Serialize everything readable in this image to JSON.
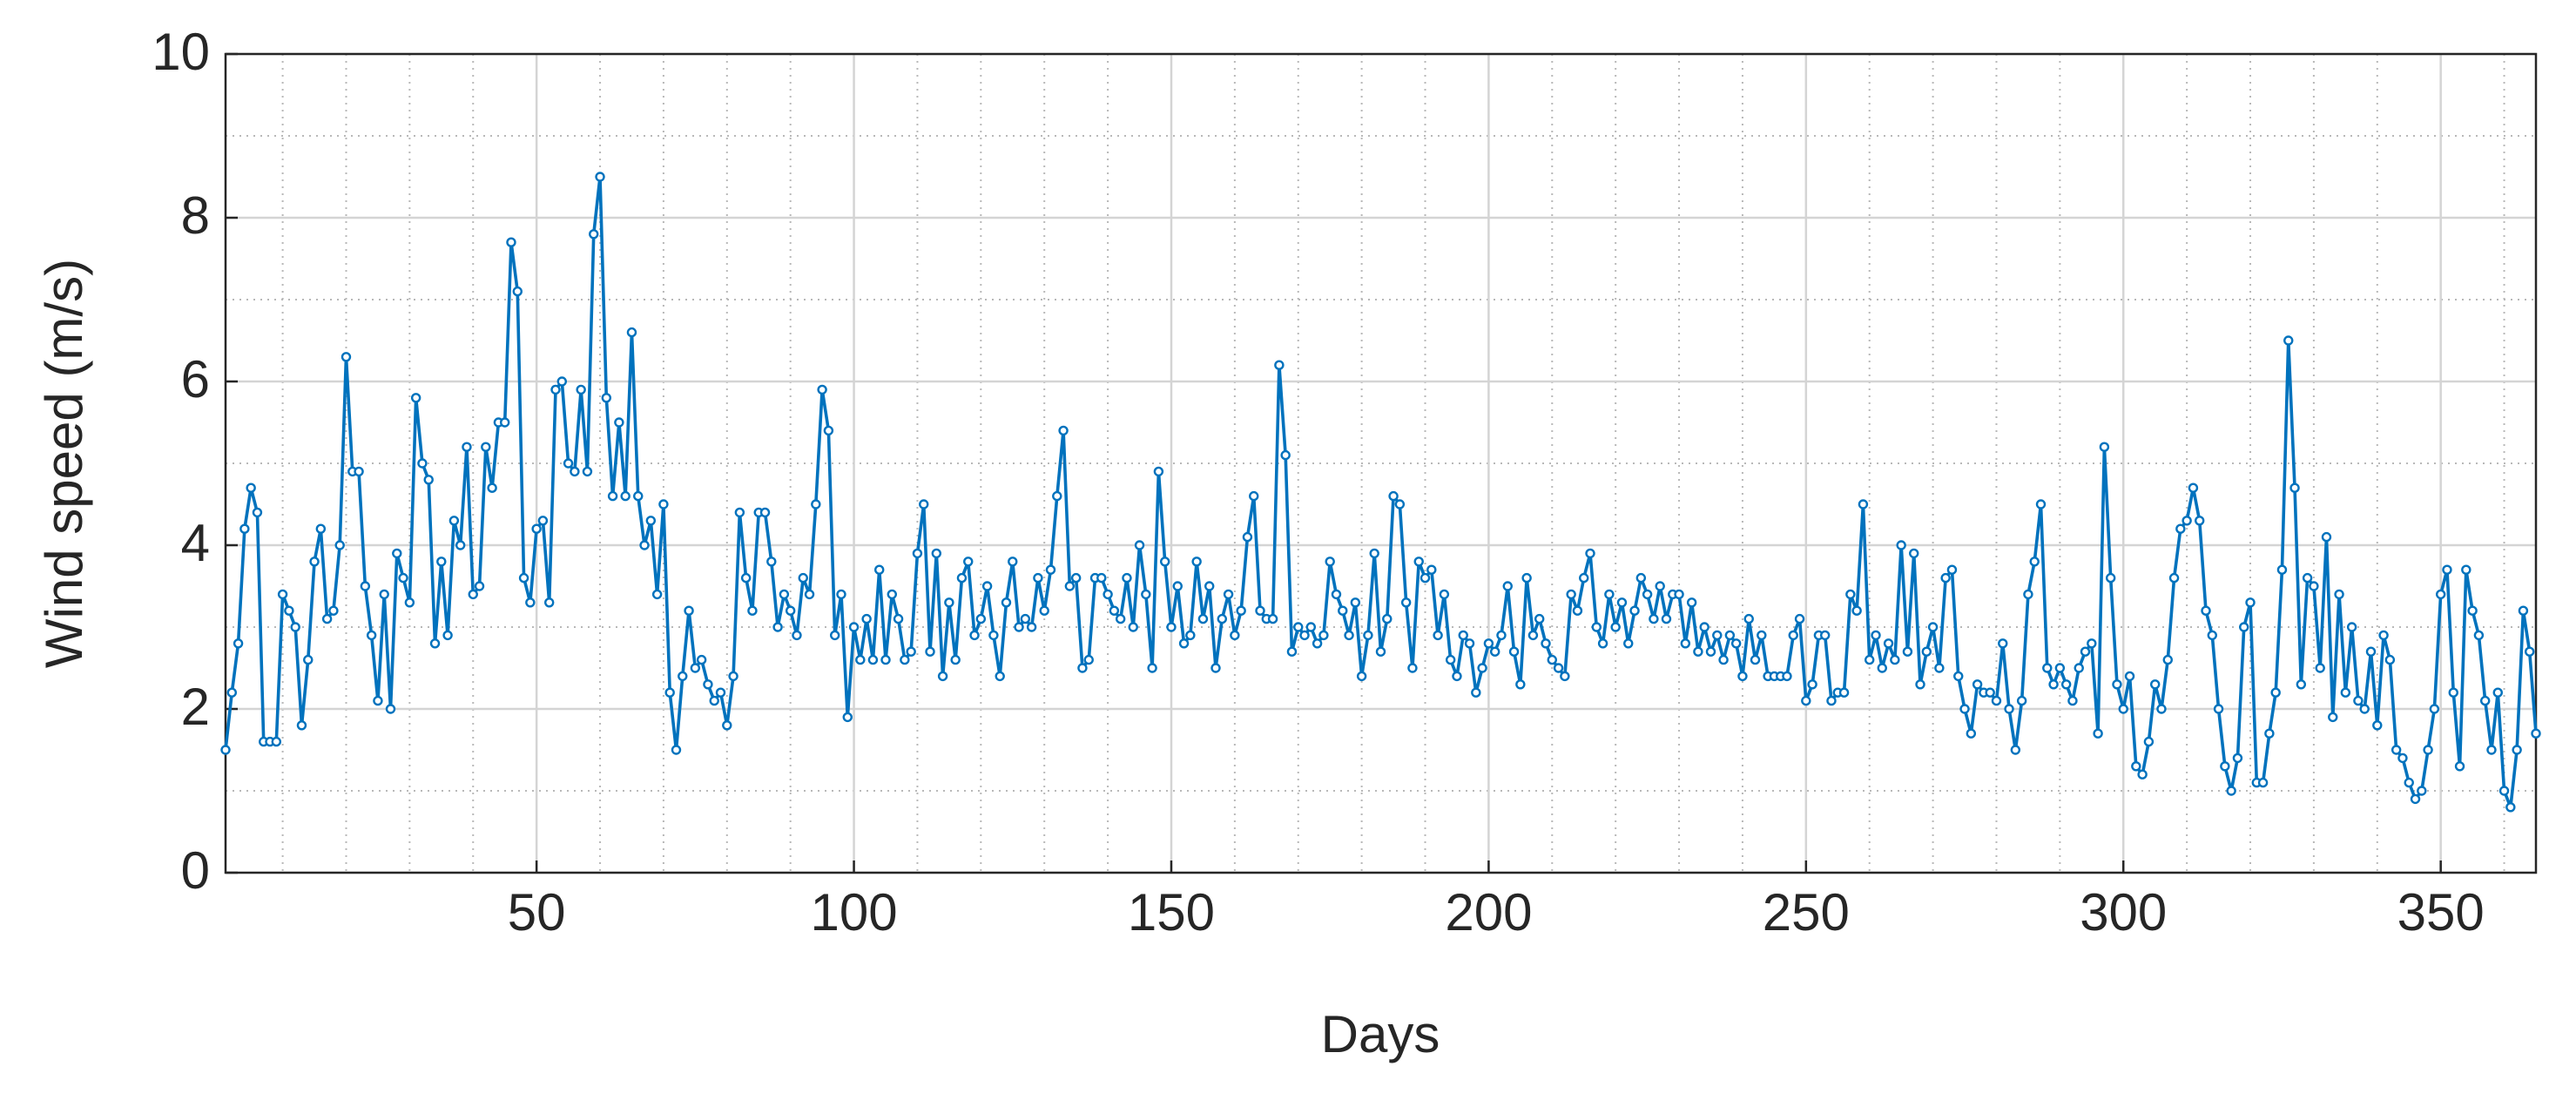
{
  "chart_data": {
    "type": "line",
    "xlabel": "Days",
    "ylabel": "Wind speed (m/s)",
    "x": [
      1,
      2,
      3,
      4,
      5,
      6,
      7,
      8,
      9,
      10,
      11,
      12,
      13,
      14,
      15,
      16,
      17,
      18,
      19,
      20,
      21,
      22,
      23,
      24,
      25,
      26,
      27,
      28,
      29,
      30,
      31,
      32,
      33,
      34,
      35,
      36,
      37,
      38,
      39,
      40,
      41,
      42,
      43,
      44,
      45,
      46,
      47,
      48,
      49,
      50,
      51,
      52,
      53,
      54,
      55,
      56,
      57,
      58,
      59,
      60,
      61,
      62,
      63,
      64,
      65,
      66,
      67,
      68,
      69,
      70,
      71,
      72,
      73,
      74,
      75,
      76,
      77,
      78,
      79,
      80,
      81,
      82,
      83,
      84,
      85,
      86,
      87,
      88,
      89,
      90,
      91,
      92,
      93,
      94,
      95,
      96,
      97,
      98,
      99,
      100,
      101,
      102,
      103,
      104,
      105,
      106,
      107,
      108,
      109,
      110,
      111,
      112,
      113,
      114,
      115,
      116,
      117,
      118,
      119,
      120,
      121,
      122,
      123,
      124,
      125,
      126,
      127,
      128,
      129,
      130,
      131,
      132,
      133,
      134,
      135,
      136,
      137,
      138,
      139,
      140,
      141,
      142,
      143,
      144,
      145,
      146,
      147,
      148,
      149,
      150,
      151,
      152,
      153,
      154,
      155,
      156,
      157,
      158,
      159,
      160,
      161,
      162,
      163,
      164,
      165,
      166,
      167,
      168,
      169,
      170,
      171,
      172,
      173,
      174,
      175,
      176,
      177,
      178,
      179,
      180,
      181,
      182,
      183,
      184,
      185,
      186,
      187,
      188,
      189,
      190,
      191,
      192,
      193,
      194,
      195,
      196,
      197,
      198,
      199,
      200,
      201,
      202,
      203,
      204,
      205,
      206,
      207,
      208,
      209,
      210,
      211,
      212,
      213,
      214,
      215,
      216,
      217,
      218,
      219,
      220,
      221,
      222,
      223,
      224,
      225,
      226,
      227,
      228,
      229,
      230,
      231,
      232,
      233,
      234,
      235,
      236,
      237,
      238,
      239,
      240,
      241,
      242,
      243,
      244,
      245,
      246,
      247,
      248,
      249,
      250,
      251,
      252,
      253,
      254,
      255,
      256,
      257,
      258,
      259,
      260,
      261,
      262,
      263,
      264,
      265,
      266,
      267,
      268,
      269,
      270,
      271,
      272,
      273,
      274,
      275,
      276,
      277,
      278,
      279,
      280,
      281,
      282,
      283,
      284,
      285,
      286,
      287,
      288,
      289,
      290,
      291,
      292,
      293,
      294,
      295,
      296,
      297,
      298,
      299,
      300,
      301,
      302,
      303,
      304,
      305,
      306,
      307,
      308,
      309,
      310,
      311,
      312,
      313,
      314,
      315,
      316,
      317,
      318,
      319,
      320,
      321,
      322,
      323,
      324,
      325,
      326,
      327,
      328,
      329,
      330,
      331,
      332,
      333,
      334,
      335,
      336,
      337,
      338,
      339,
      340,
      341,
      342,
      343,
      344,
      345,
      346,
      347,
      348,
      349,
      350,
      351,
      352,
      353,
      354,
      355,
      356,
      357,
      358,
      359,
      360,
      361,
      362,
      363,
      364,
      365
    ],
    "series": [
      {
        "color": "#0072bd",
        "values": [
          1.5,
          2.2,
          2.8,
          4.2,
          4.7,
          4.4,
          1.6,
          1.6,
          1.6,
          3.4,
          3.2,
          3.0,
          1.8,
          2.6,
          3.8,
          4.2,
          3.1,
          3.2,
          4.0,
          6.3,
          4.9,
          4.9,
          3.5,
          2.9,
          2.1,
          3.4,
          2.0,
          3.9,
          3.6,
          3.3,
          5.8,
          5.0,
          4.8,
          2.8,
          3.8,
          2.9,
          4.3,
          4.0,
          5.2,
          3.4,
          3.5,
          5.2,
          4.7,
          5.5,
          5.5,
          7.7,
          7.1,
          3.6,
          3.3,
          4.2,
          4.3,
          3.3,
          5.9,
          6.0,
          5.0,
          4.9,
          5.9,
          4.9,
          7.8,
          8.5,
          5.8,
          4.6,
          5.5,
          4.6,
          6.6,
          4.6,
          4.0,
          4.3,
          3.4,
          4.5,
          2.2,
          1.5,
          2.4,
          3.2,
          2.5,
          2.6,
          2.3,
          2.1,
          2.2,
          1.8,
          2.4,
          4.4,
          3.6,
          3.2,
          4.4,
          4.4,
          3.8,
          3.0,
          3.4,
          3.2,
          2.9,
          3.6,
          3.4,
          4.5,
          5.9,
          5.4,
          2.9,
          3.4,
          1.9,
          3.0,
          2.6,
          3.1,
          2.6,
          3.7,
          2.6,
          3.4,
          3.1,
          2.6,
          2.7,
          3.9,
          4.5,
          2.7,
          3.9,
          2.4,
          3.3,
          2.6,
          3.6,
          3.8,
          2.9,
          3.1,
          3.5,
          2.9,
          2.4,
          3.3,
          3.8,
          3.0,
          3.1,
          3.0,
          3.6,
          3.2,
          3.7,
          4.6,
          5.4,
          3.5,
          3.6,
          2.5,
          2.6,
          3.6,
          3.6,
          3.4,
          3.2,
          3.1,
          3.6,
          3.0,
          4.0,
          3.4,
          2.5,
          4.9,
          3.8,
          3.0,
          3.5,
          2.8,
          2.9,
          3.8,
          3.1,
          3.5,
          2.5,
          3.1,
          3.4,
          2.9,
          3.2,
          4.1,
          4.6,
          3.2,
          3.1,
          3.1,
          6.2,
          5.1,
          2.7,
          3.0,
          2.9,
          3.0,
          2.8,
          2.9,
          3.8,
          3.4,
          3.2,
          2.9,
          3.3,
          2.4,
          2.9,
          3.9,
          2.7,
          3.1,
          4.6,
          4.5,
          3.3,
          2.5,
          3.8,
          3.6,
          3.7,
          2.9,
          3.4,
          2.6,
          2.4,
          2.9,
          2.8,
          2.2,
          2.5,
          2.8,
          2.7,
          2.9,
          3.5,
          2.7,
          2.3,
          3.6,
          2.9,
          3.1,
          2.8,
          2.6,
          2.5,
          2.4,
          3.4,
          3.2,
          3.6,
          3.9,
          3.0,
          2.8,
          3.4,
          3.0,
          3.3,
          2.8,
          3.2,
          3.6,
          3.4,
          3.1,
          3.5,
          3.1,
          3.4,
          3.4,
          2.8,
          3.3,
          2.7,
          3.0,
          2.7,
          2.9,
          2.6,
          2.9,
          2.8,
          2.4,
          3.1,
          2.6,
          2.9,
          2.4,
          2.4,
          2.4,
          2.4,
          2.9,
          3.1,
          2.1,
          2.3,
          2.9,
          2.9,
          2.1,
          2.2,
          2.2,
          3.4,
          3.2,
          4.5,
          2.6,
          2.9,
          2.5,
          2.8,
          2.6,
          4.0,
          2.7,
          3.9,
          2.3,
          2.7,
          3.0,
          2.5,
          3.6,
          3.7,
          2.4,
          2.0,
          1.7,
          2.3,
          2.2,
          2.2,
          2.1,
          2.8,
          2.0,
          1.5,
          2.1,
          3.4,
          3.8,
          4.5,
          2.5,
          2.3,
          2.5,
          2.3,
          2.1,
          2.5,
          2.7,
          2.8,
          1.7,
          5.2,
          3.6,
          2.3,
          2.0,
          2.4,
          1.3,
          1.2,
          1.6,
          2.3,
          2.0,
          2.6,
          3.6,
          4.2,
          4.3,
          4.7,
          4.3,
          3.2,
          2.9,
          2.0,
          1.3,
          1.0,
          1.4,
          3.0,
          3.3,
          1.1,
          1.1,
          1.7,
          2.2,
          3.7,
          6.5,
          4.7,
          2.3,
          3.6,
          3.5,
          2.5,
          4.1,
          1.9,
          3.4,
          2.2,
          3.0,
          2.1,
          2.0,
          2.7,
          1.8,
          2.9,
          2.6,
          1.5,
          1.4,
          1.1,
          0.9,
          1.0,
          1.5,
          2.0,
          3.4,
          3.7,
          2.2,
          1.3,
          3.7,
          3.2,
          2.9,
          2.1,
          1.5,
          2.2,
          1.0,
          0.8,
          1.5,
          3.2,
          2.7,
          1.7
        ]
      }
    ],
    "xlim": [
      1,
      365
    ],
    "xticks": [
      50,
      100,
      150,
      200,
      250,
      300,
      350
    ],
    "ylim": [
      0,
      10
    ],
    "yticks": [
      0,
      2,
      4,
      6,
      8,
      10
    ],
    "grid": true,
    "minor_grid": true
  }
}
